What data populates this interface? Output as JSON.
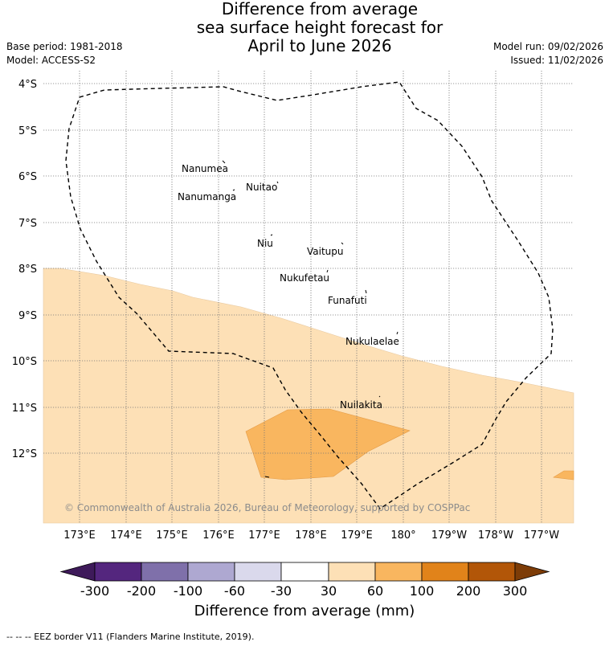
{
  "title": {
    "line1": "Difference from average",
    "line2": "sea surface height forecast for",
    "line3": "April to June 2026"
  },
  "meta": {
    "base_period": "Base period: 1981-2018",
    "model": "Model: ACCESS-S2",
    "model_run": "Model run: 09/02/2026",
    "issued": "Issued: 11/02/2026"
  },
  "map": {
    "lat_labels": [
      "4°S",
      "5°S",
      "6°S",
      "7°S",
      "8°S",
      "9°S",
      "10°S",
      "11°S",
      "12°S"
    ],
    "lon_labels": [
      "173°E",
      "174°E",
      "175°E",
      "176°E",
      "177°E",
      "178°E",
      "179°E",
      "180°",
      "179°W",
      "178°W",
      "177°W"
    ],
    "islands": [
      "Nanumea",
      "Nuitao",
      "Nanumanga",
      "Niu",
      "Vaitupu",
      "Nukufetau",
      "Funafuti",
      "Nukulaelae",
      "Nuilakita"
    ],
    "copyright": "© Commonwealth of Australia 2026, Bureau of Meteorology, supported by COSPPac"
  },
  "colorbar": {
    "ticks": [
      "-300",
      "-200",
      "-100",
      "-60",
      "-30",
      "30",
      "60",
      "100",
      "200",
      "300"
    ],
    "colors": [
      "#3e1a5a",
      "#54267e",
      "#7f70aa",
      "#aea8d1",
      "#dad9ec",
      "#ffffff",
      "#fde0b6",
      "#f9b65f",
      "#e1831a",
      "#b25608",
      "#7d3c07"
    ],
    "title": "Difference from average (mm)"
  },
  "footer": "-- -- -- EEZ border V11 (Flanders Marine Institute, 2019)."
}
